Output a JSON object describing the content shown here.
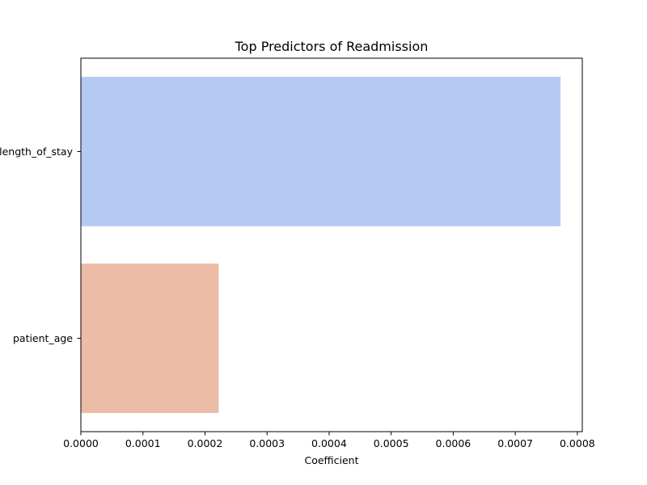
{
  "chart_data": {
    "type": "bar",
    "orientation": "horizontal",
    "title": "Top Predictors of Readmission",
    "xlabel": "Coefficient",
    "ylabel": "",
    "categories": [
      "length_of_stay",
      "patient_age"
    ],
    "values": [
      0.000773,
      0.000222
    ],
    "colors": [
      "#b5caf2",
      "#ecbca7"
    ],
    "xlim": [
      0,
      0.000808
    ],
    "xticks": [
      0,
      0.0001,
      0.0002,
      0.0003,
      0.0004,
      0.0005,
      0.0006,
      0.0007,
      0.0008
    ],
    "xtick_labels": [
      "0.0000",
      "0.0001",
      "0.0002",
      "0.0003",
      "0.0004",
      "0.0005",
      "0.0006",
      "0.0007",
      "0.0008"
    ],
    "grid": false,
    "legend": "none"
  }
}
